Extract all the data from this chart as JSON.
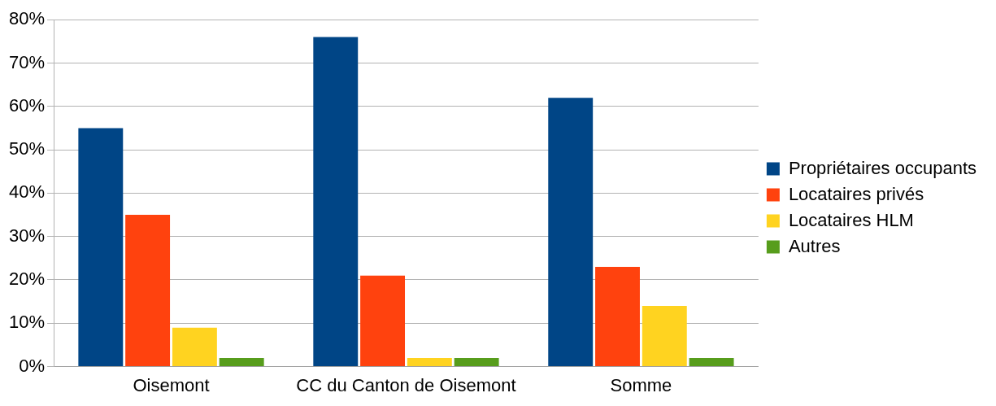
{
  "chart_data": {
    "type": "bar",
    "categories": [
      "Oisemont",
      "CC du Canton de Oisemont",
      "Somme"
    ],
    "series": [
      {
        "name": "Propriétaires occupants",
        "color": "#004586",
        "values": [
          55,
          76,
          62
        ]
      },
      {
        "name": "Locataires privés",
        "color": "#ff420e",
        "values": [
          35,
          21,
          23
        ]
      },
      {
        "name": "Locataires HLM",
        "color": "#ffd320",
        "values": [
          9,
          2,
          14
        ]
      },
      {
        "name": "Autres",
        "color": "#579d1c",
        "values": [
          2,
          2,
          2
        ]
      }
    ],
    "ylim": [
      0,
      80
    ],
    "yticks": [
      {
        "value": 0,
        "label": "0%"
      },
      {
        "value": 10,
        "label": "10%"
      },
      {
        "value": 20,
        "label": "20%"
      },
      {
        "value": 30,
        "label": "30%"
      },
      {
        "value": 40,
        "label": "40%"
      },
      {
        "value": 50,
        "label": "50%"
      },
      {
        "value": 60,
        "label": "60%"
      },
      {
        "value": 70,
        "label": "70%"
      },
      {
        "value": 80,
        "label": "80%"
      }
    ],
    "grid": "y",
    "legend": "right"
  }
}
